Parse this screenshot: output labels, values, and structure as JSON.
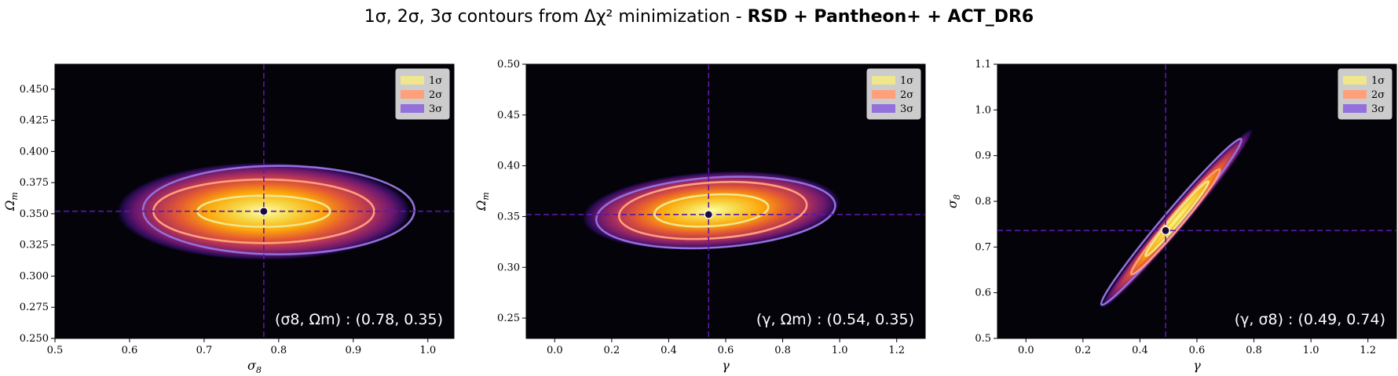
{
  "figure": {
    "title_prefix": "1σ, 2σ, 3σ contours from Δχ² minimization - ",
    "title_bold": "RSD + Pantheon+ + ACT_DR6"
  },
  "colors": {
    "background": "#04030a",
    "crosshair": "#5a18a8",
    "best_fit_point": "#1a0a3a",
    "contour_1sigma": "#f0e68c",
    "contour_2sigma": "#ffa07a",
    "contour_3sigma": "#9370db",
    "colormap": "inferno"
  },
  "legend": {
    "placement": "top-right",
    "entries": [
      {
        "label": "1σ",
        "color": "#f0e68c"
      },
      {
        "label": "2σ",
        "color": "#ffa07a"
      },
      {
        "label": "3σ",
        "color": "#9370db"
      }
    ]
  },
  "chart_data": [
    {
      "type": "heatmap",
      "xlabel": "σ8",
      "ylabel": "Ωm",
      "xlim": [
        0.5,
        1.035
      ],
      "ylim": [
        0.25,
        0.47
      ],
      "xticks": [
        "0.5",
        "0.6",
        "0.7",
        "0.8",
        "0.9",
        "1.0"
      ],
      "xtick_values": [
        0.5,
        0.6,
        0.7,
        0.8,
        0.9,
        1.0
      ],
      "yticks": [
        "0.250",
        "0.275",
        "0.300",
        "0.325",
        "0.350",
        "0.375",
        "0.400",
        "0.425",
        "0.450"
      ],
      "ytick_values": [
        0.25,
        0.275,
        0.3,
        0.325,
        0.35,
        0.375,
        0.4,
        0.425,
        0.45
      ],
      "best_fit": {
        "x": 0.78,
        "y": 0.352
      },
      "annotation": "(σ8, Ωm) : (0.78, 0.35)",
      "contours": [
        {
          "level": "1σ",
          "center": [
            0.78,
            0.352
          ],
          "semi_major": 0.089,
          "semi_minor": 0.0125,
          "tilt": 0
        },
        {
          "level": "2σ",
          "center": [
            0.78,
            0.352
          ],
          "semi_major": 0.148,
          "semi_minor": 0.0255,
          "tilt": 0
        },
        {
          "level": "3σ",
          "center": [
            0.8,
            0.353
          ],
          "semi_major": 0.182,
          "semi_minor": 0.0355,
          "tilt": 0
        }
      ]
    },
    {
      "type": "heatmap",
      "xlabel": "γ",
      "ylabel": "Ωm",
      "xlim": [
        -0.1,
        1.3
      ],
      "ylim": [
        0.23,
        0.5
      ],
      "xticks": [
        "0.0",
        "0.2",
        "0.4",
        "0.6",
        "0.8",
        "1.0",
        "1.2"
      ],
      "xtick_values": [
        0.0,
        0.2,
        0.4,
        0.6,
        0.8,
        1.0,
        1.2
      ],
      "yticks": [
        "0.25",
        "0.30",
        "0.35",
        "0.40",
        "0.45",
        "0.50"
      ],
      "ytick_values": [
        0.25,
        0.3,
        0.35,
        0.4,
        0.45,
        0.5
      ],
      "best_fit": {
        "x": 0.54,
        "y": 0.352
      },
      "annotation": "(γ, Ωm) : (0.54, 0.35)",
      "contours": [
        {
          "level": "1σ",
          "center": [
            0.55,
            0.356
          ],
          "semi_major": 0.2,
          "semi_minor": 0.0155,
          "tilt": 0.018
        },
        {
          "level": "2σ",
          "center": [
            0.555,
            0.356
          ],
          "semi_major": 0.33,
          "semi_minor": 0.0275,
          "tilt": 0.018
        },
        {
          "level": "3σ",
          "center": [
            0.565,
            0.354
          ],
          "semi_major": 0.42,
          "semi_minor": 0.0345,
          "tilt": 0.018
        }
      ]
    },
    {
      "type": "heatmap",
      "xlabel": "γ",
      "ylabel": "σ8",
      "xlim": [
        -0.1,
        1.3
      ],
      "ylim": [
        0.5,
        1.1
      ],
      "xticks": [
        "0.0",
        "0.2",
        "0.4",
        "0.6",
        "0.8",
        "1.0",
        "1.2"
      ],
      "xtick_values": [
        0.0,
        0.2,
        0.4,
        0.6,
        0.8,
        1.0,
        1.2
      ],
      "yticks": [
        "0.5",
        "0.6",
        "0.7",
        "0.8",
        "0.9",
        "1.0",
        "1.1"
      ],
      "ytick_values": [
        0.5,
        0.6,
        0.7,
        0.8,
        0.9,
        1.0,
        1.1
      ],
      "best_fit": {
        "x": 0.49,
        "y": 0.736
      },
      "annotation": "(γ, σ8) : (0.49, 0.74)",
      "contours": [
        {
          "level": "1σ",
          "center": [
            0.53,
            0.762
          ],
          "semi_major": 0.11,
          "semi_minor": 0.012,
          "slope": 0.74
        },
        {
          "level": "2σ",
          "center": [
            0.525,
            0.755
          ],
          "semi_major": 0.155,
          "semi_minor": 0.018,
          "slope": 0.74
        },
        {
          "level": "3σ",
          "center": [
            0.51,
            0.755
          ],
          "semi_major": 0.245,
          "semi_minor": 0.025,
          "slope": 0.74
        }
      ]
    }
  ]
}
